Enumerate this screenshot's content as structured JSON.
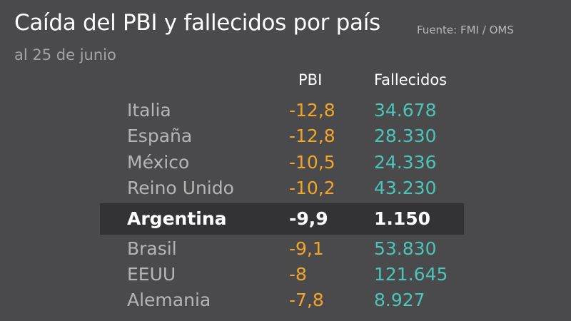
{
  "header": {
    "title": "Caída del PBI y fallecidos por país",
    "source": "Fuente: FMI / OMS",
    "subtitle": "al 25 de junio"
  },
  "colors": {
    "background": "#4a4a4c",
    "highlight_band": "#333335",
    "pbi": "#f1a52b",
    "deaths": "#4cc4b8",
    "country": "#b5b5b5",
    "highlight_text": "#ffffff"
  },
  "chart_data": {
    "type": "table",
    "title": "Caída del PBI y fallecidos por país",
    "subtitle": "al 25 de junio",
    "source": "Fuente: FMI / OMS",
    "columns": [
      "PBI",
      "Fallecidos"
    ],
    "highlighted_row": "Argentina",
    "rows": [
      {
        "country": "Italia",
        "pbi": "-12,8",
        "deaths": "34.678"
      },
      {
        "country": "España",
        "pbi": "-12,8",
        "deaths": "28.330"
      },
      {
        "country": "México",
        "pbi": "-10,5",
        "deaths": "24.336"
      },
      {
        "country": "Reino Unido",
        "pbi": "-10,2",
        "deaths": "43.230"
      },
      {
        "country": "Argentina",
        "pbi": "-9,9",
        "deaths": "1.150"
      },
      {
        "country": "Brasil",
        "pbi": "-9,1",
        "deaths": "53.830"
      },
      {
        "country": "EEUU",
        "pbi": "-8",
        "deaths": "121.645"
      },
      {
        "country": "Alemania",
        "pbi": "-7,8",
        "deaths": "8.927"
      }
    ]
  }
}
